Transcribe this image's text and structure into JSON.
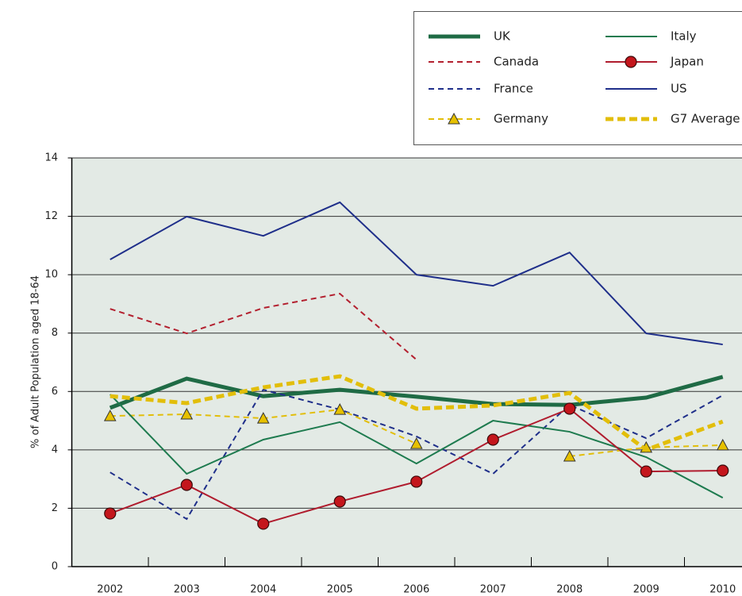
{
  "chart_data": {
    "type": "line",
    "y_label": "% of Adult Population aged 18-64",
    "categories": [
      "2002",
      "2003",
      "2004",
      "2005",
      "2006",
      "2007",
      "2008",
      "2009",
      "2010"
    ],
    "ylim": [
      0,
      14
    ],
    "yticks": [
      0,
      2,
      4,
      6,
      8,
      10,
      12,
      14
    ],
    "grid": true,
    "series": [
      {
        "name": "UK",
        "color": "#1f6b45",
        "line_style": "solid",
        "line_width": "thick",
        "marker": "none",
        "values": [
          5.44,
          6.44,
          5.84,
          6.06,
          5.82,
          5.57,
          5.54,
          5.79,
          6.5
        ]
      },
      {
        "name": "Canada",
        "color": "#b3202f",
        "line_style": "dashed",
        "line_width": "thin",
        "marker": "none",
        "values": [
          8.83,
          7.99,
          8.86,
          9.35,
          7.09,
          null,
          null,
          null,
          null
        ]
      },
      {
        "name": "France",
        "color": "#1f2f8a",
        "line_style": "dashed",
        "line_width": "thin",
        "marker": "none",
        "values": [
          3.23,
          1.63,
          6.06,
          5.38,
          4.46,
          3.18,
          5.54,
          4.4,
          5.87
        ]
      },
      {
        "name": "Germany",
        "color": "#e2be0a",
        "line_style": "dashed",
        "line_width": "thin",
        "marker": "triangle",
        "values": [
          5.16,
          5.22,
          5.08,
          5.38,
          4.21,
          null,
          3.78,
          4.08,
          4.16
        ]
      },
      {
        "name": "Italy",
        "color": "#1e7b4f",
        "line_style": "solid",
        "line_width": "thin",
        "marker": "none",
        "values": [
          5.9,
          3.18,
          4.35,
          4.95,
          3.53,
          5.0,
          4.62,
          3.75,
          2.36
        ]
      },
      {
        "name": "Japan",
        "color": "#b01c2e",
        "line_style": "solid",
        "line_width": "thin",
        "marker": "circle",
        "values": [
          1.82,
          2.8,
          1.47,
          2.23,
          2.91,
          4.35,
          5.41,
          3.26,
          3.29
        ]
      },
      {
        "name": "US",
        "color": "#1f2f8a",
        "line_style": "solid",
        "line_width": "thin",
        "marker": "none",
        "values": [
          10.52,
          11.99,
          11.33,
          12.48,
          10.0,
          9.62,
          10.76,
          7.99,
          7.61
        ]
      },
      {
        "name": "G7 Average",
        "color": "#e2be0a",
        "line_style": "dashed",
        "line_width": "thick",
        "marker": "none",
        "values": [
          5.84,
          5.6,
          6.14,
          6.52,
          5.41,
          5.52,
          5.95,
          4.0,
          4.97
        ]
      }
    ]
  }
}
